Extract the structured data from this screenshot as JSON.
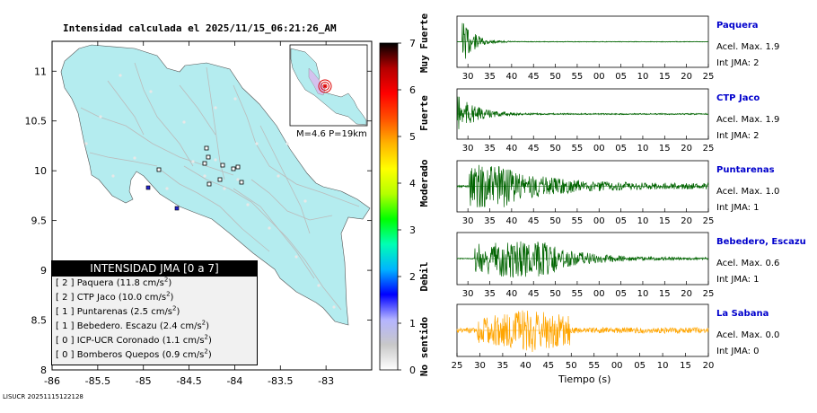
{
  "title": "Intensidad calculada el 2025/11/15_06:21:26_AM",
  "map": {
    "lon_ticks": [
      "-86",
      "-85.5",
      "-85",
      "-84.5",
      "-84",
      "-83.5",
      "-83"
    ],
    "lat_ticks": [
      "11",
      "10.5",
      "10",
      "9.5",
      "9",
      "8.5",
      "8"
    ],
    "lon_range": [
      -86,
      -82.5
    ],
    "lat_range": [
      8,
      11.3
    ],
    "inset_label": "M=4.6 P=19km",
    "land_color": "#b4ecef",
    "road_color": "#bbbbbb"
  },
  "legend": {
    "header": "INTENSIDAD JMA [0 a 7]",
    "items": [
      {
        "level": "[ 2 ]",
        "name": "Paquera",
        "acc": "(11.8 cm/s",
        "sup": "2",
        "close": ")"
      },
      {
        "level": "[ 2 ]",
        "name": "CTP Jaco",
        "acc": "(10.0 cm/s",
        "sup": "2",
        "close": ")"
      },
      {
        "level": "[ 1 ]",
        "name": "Puntarenas",
        "acc": "(2.5 cm/s",
        "sup": "2",
        "close": ")"
      },
      {
        "level": "[ 1 ]",
        "name": "Bebedero. Escazu",
        "acc": "(2.4 cm/s",
        "sup": "2",
        "close": ")"
      },
      {
        "level": "[ 0 ]",
        "name": "ICP-UCR Coronado",
        "acc": "(1.1 cm/s",
        "sup": "2",
        "close": ")"
      },
      {
        "level": "[ 0 ]",
        "name": "Bomberos Quepos",
        "acc": "(0.9 cm/s",
        "sup": "2",
        "close": ")"
      }
    ]
  },
  "colorscale": {
    "ticks": [
      "0",
      "1",
      "2",
      "3",
      "4",
      "5",
      "6",
      "7"
    ],
    "labels": [
      "No sentido",
      "Debil",
      "Moderado",
      "Fuerte",
      "Muy Fuerte"
    ],
    "label_levels": [
      0.5,
      2,
      4,
      5.5,
      7
    ],
    "stops": [
      "#ffffff",
      "#c8c8c8",
      "#b4b4ff",
      "#0000ff",
      "#00b4ff",
      "#00ffb4",
      "#00ff00",
      "#b4ff00",
      "#ffff00",
      "#ffb400",
      "#ff5000",
      "#ff0000",
      "#b40000",
      "#000000"
    ]
  },
  "chart_data": {
    "type": "line",
    "xlabel": "Tiempo (s)",
    "stations": [
      {
        "name": "Paquera",
        "accel": "Acel. Max. 1.9",
        "jma": "Int JMA: 2",
        "color": "#006400",
        "ticks": [
          "30",
          "35",
          "40",
          "45",
          "50",
          "55",
          "00",
          "05",
          "10",
          "15",
          "20",
          "25"
        ]
      },
      {
        "name": "CTP Jaco",
        "accel": "Acel. Max. 1.9",
        "jma": "Int JMA: 2",
        "color": "#006400",
        "ticks": [
          "30",
          "35",
          "40",
          "45",
          "50",
          "55",
          "00",
          "05",
          "10",
          "15",
          "20",
          "25"
        ]
      },
      {
        "name": "Puntarenas",
        "accel": "Acel. Max. 1.0",
        "jma": "Int JMA: 1",
        "color": "#006400",
        "ticks": [
          "30",
          "35",
          "40",
          "45",
          "50",
          "55",
          "00",
          "05",
          "10",
          "15",
          "20",
          "25"
        ]
      },
      {
        "name": "Bebedero, Escazu",
        "accel": "Acel. Max. 0.6",
        "jma": "Int JMA: 1",
        "color": "#006400",
        "ticks": [
          "30",
          "35",
          "40",
          "45",
          "50",
          "55",
          "00",
          "05",
          "10",
          "15",
          "20",
          "25"
        ]
      },
      {
        "name": "La Sabana",
        "accel": "Acel. Max. 0.0",
        "jma": "Int JMA: 0",
        "color": "#ffa500",
        "ticks": [
          "25",
          "30",
          "35",
          "40",
          "45",
          "50",
          "55",
          "00",
          "05",
          "10",
          "15",
          "20"
        ]
      }
    ]
  },
  "footer": "LISUCR 20251115122128"
}
